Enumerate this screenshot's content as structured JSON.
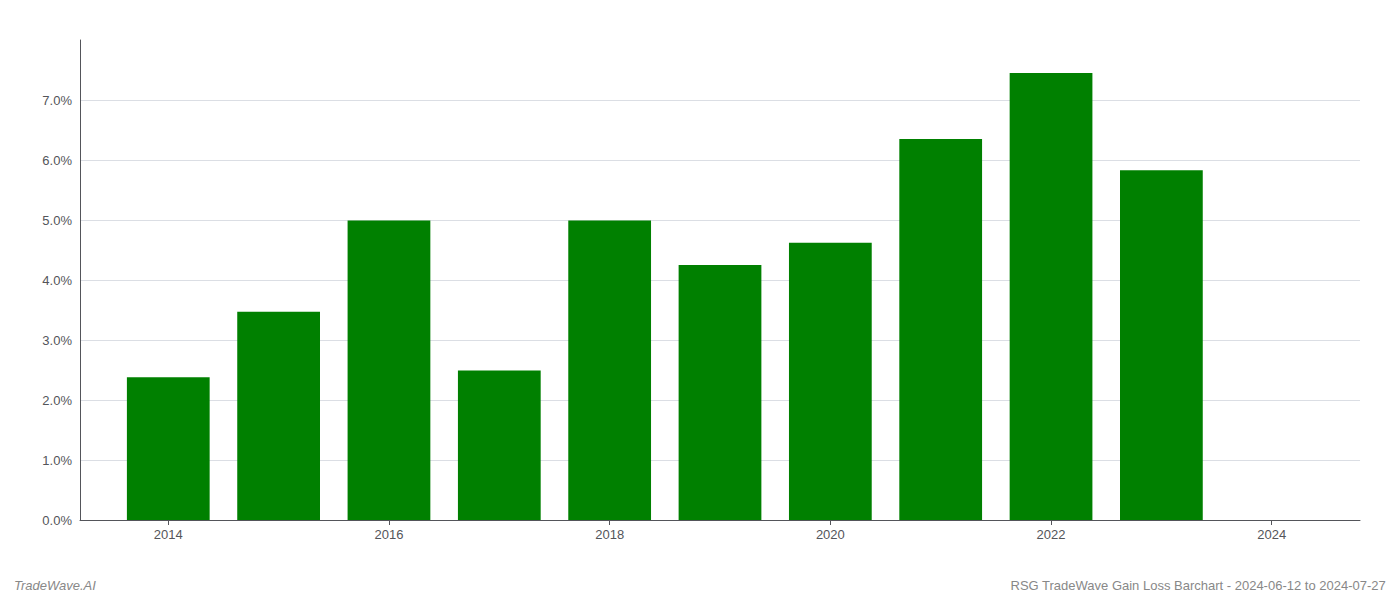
{
  "chart_data": {
    "type": "bar",
    "x": [
      2014,
      2015,
      2016,
      2017,
      2018,
      2019,
      2020,
      2021,
      2022,
      2023
    ],
    "values": [
      0.0238,
      0.0347,
      0.0499,
      0.0249,
      0.0499,
      0.0425,
      0.0462,
      0.0635,
      0.0745,
      0.0583
    ],
    "color": "#008000",
    "xlim": [
      2013.2,
      2024.8
    ],
    "xticks": [
      2014,
      2016,
      2018,
      2020,
      2022,
      2024
    ],
    "ylim": [
      0.0,
      0.08
    ],
    "yticks": [
      {
        "value": 0.0,
        "label": "0.0%"
      },
      {
        "value": 0.01,
        "label": "1.0%"
      },
      {
        "value": 0.02,
        "label": "2.0%"
      },
      {
        "value": 0.03,
        "label": "3.0%"
      },
      {
        "value": 0.04,
        "label": "4.0%"
      },
      {
        "value": 0.05,
        "label": "5.0%"
      },
      {
        "value": 0.06,
        "label": "6.0%"
      },
      {
        "value": 0.07,
        "label": "7.0%"
      }
    ],
    "grid": true,
    "annotations": [
      "TradeWave.AI",
      "RSG TradeWave Gain Loss Barchart - 2024-06-12 to 2024-07-27"
    ]
  }
}
